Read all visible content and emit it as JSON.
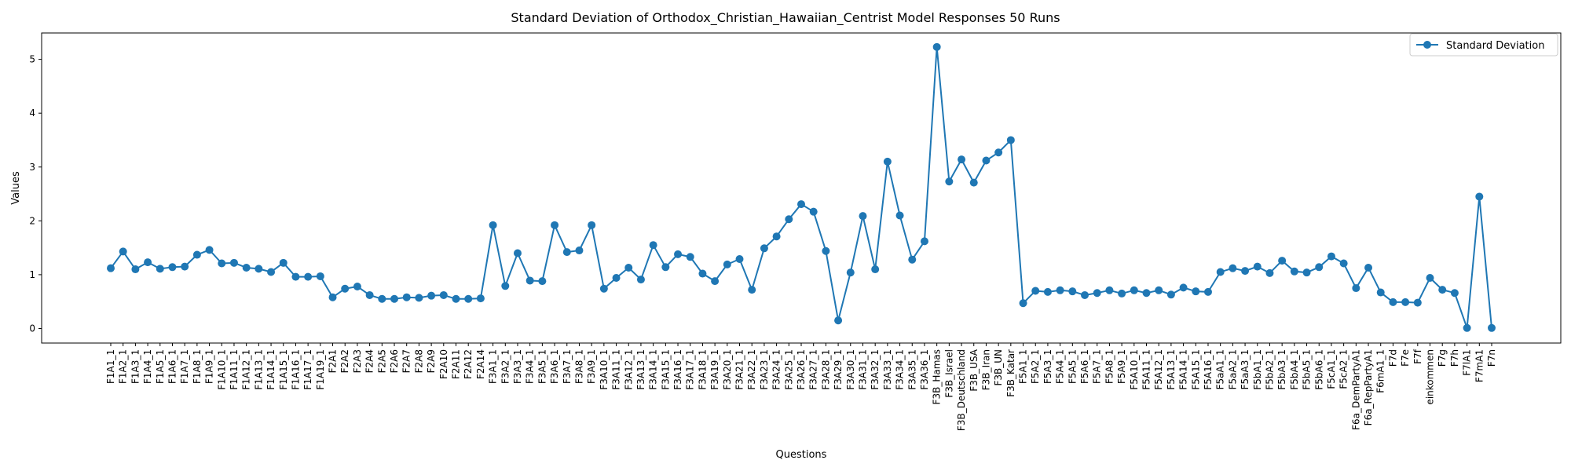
{
  "chart_data": {
    "type": "line",
    "title": "Standard Deviation of Orthodox_Christian_Hawaiian_Centrist Model Responses 50 Runs",
    "xlabel": "Questions",
    "ylabel": "Values",
    "ylim": [
      -0.27,
      5.49
    ],
    "yticks": [
      0,
      1,
      2,
      3,
      4,
      5
    ],
    "grid": false,
    "legend_position": "top-right",
    "series": [
      {
        "name": "Standard Deviation",
        "color": "#1f77b4",
        "marker": "circle",
        "values": [
          1.12,
          1.43,
          1.1,
          1.23,
          1.11,
          1.14,
          1.15,
          1.37,
          1.46,
          1.21,
          1.22,
          1.13,
          1.11,
          1.05,
          1.22,
          0.96,
          0.96,
          0.97,
          0.58,
          0.74,
          0.78,
          0.62,
          0.55,
          0.55,
          0.58,
          0.57,
          0.61,
          0.62,
          0.55,
          0.55,
          0.56,
          1.92,
          0.79,
          1.4,
          0.89,
          0.88,
          1.92,
          1.42,
          1.45,
          1.92,
          0.74,
          0.94,
          1.13,
          0.91,
          1.55,
          1.14,
          1.38,
          1.33,
          1.02,
          0.88,
          1.19,
          1.29,
          0.72,
          1.49,
          1.71,
          2.03,
          2.31,
          2.17,
          1.44,
          0.15,
          1.04,
          2.09,
          1.1,
          3.1,
          2.1,
          1.28,
          1.62,
          5.23,
          2.73,
          3.14,
          2.71,
          3.12,
          3.27,
          3.5,
          0.47,
          0.7,
          0.68,
          0.71,
          0.69,
          0.62,
          0.66,
          0.71,
          0.65,
          0.71,
          0.66,
          0.71,
          0.63,
          0.76,
          0.69,
          0.68,
          1.05,
          1.12,
          1.07,
          1.15,
          1.03,
          1.26,
          1.06,
          1.04,
          1.14,
          1.34,
          1.21,
          0.75,
          1.13,
          0.67,
          0.49,
          0.49,
          0.48,
          0.94,
          0.72,
          0.66,
          0.01,
          2.45,
          0.01
        ]
      }
    ],
    "categories": [
      "F1A1_1",
      "F1A2_1",
      "F1A3_1",
      "F1A4_1",
      "F1A5_1",
      "F1A6_1",
      "F1A7_1",
      "F1A8_1",
      "F1A9_1",
      "F1A10_1",
      "F1A11_1",
      "F1A12_1",
      "F1A13_1",
      "F1A14_1",
      "F1A15_1",
      "F1A16_1",
      "F1A17_1",
      "F1A19_1",
      "F2A1",
      "F2A2",
      "F2A3",
      "F2A4",
      "F2A5",
      "F2A6",
      "F2A7",
      "F2A8",
      "F2A9",
      "F2A10",
      "F2A11",
      "F2A12",
      "F2A14",
      "F3A1_1",
      "F3A2_1",
      "F3A3_1",
      "F3A4_1",
      "F3A5_1",
      "F3A6_1",
      "F3A7_1",
      "F3A8_1",
      "F3A9_1",
      "F3A10_1",
      "F3A11_1",
      "F3A12_1",
      "F3A13_1",
      "F3A14_1",
      "F3A15_1",
      "F3A16_1",
      "F3A17_1",
      "F3A18_1",
      "F3A19_1",
      "F3A20_1",
      "F3A21_1",
      "F3A22_1",
      "F3A23_1",
      "F3A24_1",
      "F3A25_1",
      "F3A26_1",
      "F3A27_1",
      "F3A28_1",
      "F3A29_1",
      "F3A30_1",
      "F3A31_1",
      "F3A32_1",
      "F3A33_1",
      "F3A34_1",
      "F3A35_1",
      "F3A36_1",
      "F3B_Hamas",
      "F3B_Israel",
      "F3B_Deutschland",
      "F3B_USA",
      "F3B_Iran",
      "F3B_UN",
      "F3B_Katar",
      "F5A1_1",
      "F5A2_1",
      "F5A3_1",
      "F5A4_1",
      "F5A5_1",
      "F5A6_1",
      "F5A7_1",
      "F5A8_1",
      "F5A9_1",
      "F5A10_1",
      "F5A11_1",
      "F5A12_1",
      "F5A13_1",
      "F5A14_1",
      "F5A15_1",
      "F5A16_1",
      "F5aA1_1",
      "F5aA2_1",
      "F5aA3_1",
      "F5bA1_1",
      "F5bA2_1",
      "F5bA3_1",
      "F5bA4_1",
      "F5bA5_1",
      "F5bA6_1",
      "F5cA1_1",
      "F5cA2_1",
      "F6a_DemPartyA1",
      "F6a_RepPartyA1",
      "F6mA1_1",
      "F7d",
      "F7e",
      "F7f",
      "einkommen",
      "F7g",
      "F7h",
      "F7lA1",
      "F7mA1",
      "F7n"
    ]
  }
}
